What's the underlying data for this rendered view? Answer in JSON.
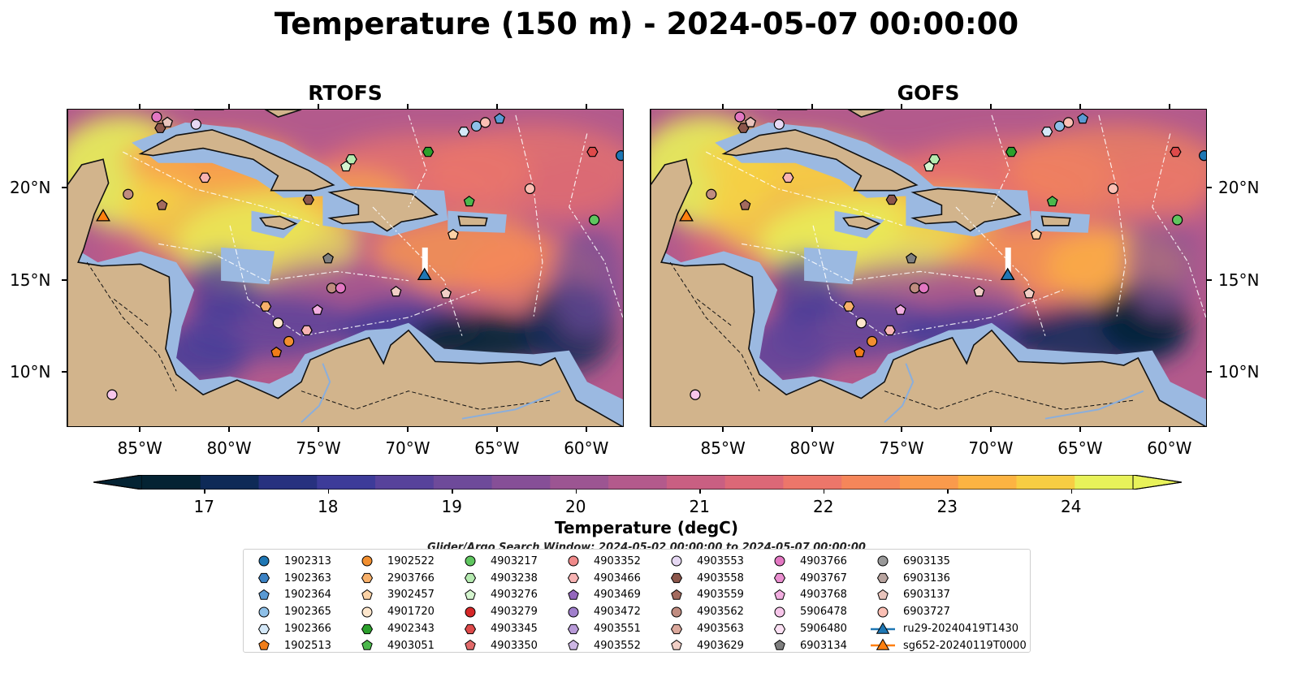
{
  "figure": {
    "title": "Temperature (150 m) - 2024-05-07 00:00:00",
    "search_window": "Glider/Argo Search Window: 2024-05-02 00:00:00 to 2024-05-07 00:00:00"
  },
  "panels": [
    {
      "title": "RTOFS"
    },
    {
      "title": "GOFS"
    }
  ],
  "axes": {
    "lon_labels": [
      "85°W",
      "80°W",
      "75°W",
      "70°W",
      "65°W",
      "60°W"
    ],
    "lat_labels": [
      "20°N",
      "15°N",
      "10°N"
    ],
    "lon_range": [
      -89.1,
      -57.9
    ],
    "lat_range": [
      7.0,
      24.3
    ]
  },
  "colorbar": {
    "label": "Temperature (degC)",
    "ticks": [
      "17",
      "18",
      "19",
      "20",
      "21",
      "22",
      "23",
      "24"
    ],
    "range": [
      16.5,
      24.5
    ],
    "extend": "both",
    "colormap": "thermal",
    "colors": [
      "#042333",
      "#0e2a57",
      "#27317f",
      "#3d3b99",
      "#57429b",
      "#6e4a9a",
      "#864f97",
      "#9c5592",
      "#b35a8c",
      "#c95f82",
      "#dc6877",
      "#ec766a",
      "#f5865a",
      "#fa9a4c",
      "#fcb342",
      "#f7cd43",
      "#e8f25a"
    ]
  },
  "land_color": "#d2b48c",
  "shelf_color": "#9bb9e1",
  "legend": {
    "columns": [
      [
        {
          "id": "1902313",
          "marker": "circle",
          "color": "#1f77b4"
        },
        {
          "id": "1902363",
          "marker": "hexagon",
          "color": "#3b82c4"
        },
        {
          "id": "1902364",
          "marker": "pentagon",
          "color": "#5a9ad3"
        },
        {
          "id": "1902365",
          "marker": "circle",
          "color": "#8ec0e8"
        },
        {
          "id": "1902366",
          "marker": "hexagon",
          "color": "#d4e8f8"
        },
        {
          "id": "1902513",
          "marker": "pentagon",
          "color": "#f07d18"
        }
      ],
      [
        {
          "id": "1902522",
          "marker": "circle",
          "color": "#f28f30"
        },
        {
          "id": "2903766",
          "marker": "hexagon",
          "color": "#f7b06a"
        },
        {
          "id": "3902457",
          "marker": "pentagon",
          "color": "#fbd2a6"
        },
        {
          "id": "4901720",
          "marker": "circle",
          "color": "#fde6cc"
        },
        {
          "id": "4902343",
          "marker": "hexagon",
          "color": "#2ca02c"
        },
        {
          "id": "4903051",
          "marker": "pentagon",
          "color": "#4cb84c"
        }
      ],
      [
        {
          "id": "4903217",
          "marker": "circle",
          "color": "#5fc65f"
        },
        {
          "id": "4903238",
          "marker": "hexagon",
          "color": "#b5eab0"
        },
        {
          "id": "4903276",
          "marker": "pentagon",
          "color": "#d5f5cf"
        },
        {
          "id": "4903279",
          "marker": "circle",
          "color": "#d62728"
        },
        {
          "id": "4903345",
          "marker": "hexagon",
          "color": "#de4a4a"
        },
        {
          "id": "4903350",
          "marker": "pentagon",
          "color": "#e26a6a"
        }
      ],
      [
        {
          "id": "4903352",
          "marker": "circle",
          "color": "#f08a8a"
        },
        {
          "id": "4903466",
          "marker": "hexagon",
          "color": "#f7b3b3"
        },
        {
          "id": "4903469",
          "marker": "pentagon",
          "color": "#9467bd"
        },
        {
          "id": "4903472",
          "marker": "circle",
          "color": "#a07fcc"
        },
        {
          "id": "4903551",
          "marker": "hexagon",
          "color": "#b89ad8"
        },
        {
          "id": "4903552",
          "marker": "pentagon",
          "color": "#cdb6e4"
        }
      ],
      [
        {
          "id": "4903553",
          "marker": "circle",
          "color": "#e6d8f3"
        },
        {
          "id": "4903558",
          "marker": "hexagon",
          "color": "#8c564b"
        },
        {
          "id": "4903559",
          "marker": "pentagon",
          "color": "#a36a5e"
        },
        {
          "id": "4903562",
          "marker": "circle",
          "color": "#c08c80"
        },
        {
          "id": "4903563",
          "marker": "hexagon",
          "color": "#dba89c"
        },
        {
          "id": "4903629",
          "marker": "pentagon",
          "color": "#f1cfc6"
        }
      ],
      [
        {
          "id": "4903766",
          "marker": "circle",
          "color": "#e377c2"
        },
        {
          "id": "4903767",
          "marker": "hexagon",
          "color": "#ea8fd0"
        },
        {
          "id": "4903768",
          "marker": "pentagon",
          "color": "#f2aee0"
        },
        {
          "id": "5906478",
          "marker": "circle",
          "color": "#f7c6ea"
        },
        {
          "id": "5906480",
          "marker": "hexagon",
          "color": "#fbe0f3"
        },
        {
          "id": "6903134",
          "marker": "pentagon",
          "color": "#7f7f7f"
        }
      ],
      [
        {
          "id": "6903135",
          "marker": "circle",
          "color": "#999999"
        },
        {
          "id": "6903136",
          "marker": "hexagon",
          "color": "#b8a49f"
        },
        {
          "id": "6903137",
          "marker": "pentagon",
          "color": "#e9c4bc"
        },
        {
          "id": "6903727",
          "marker": "circle",
          "color": "#fbbfb4"
        },
        {
          "id": "ru29-20240419T1430",
          "marker": "triangle",
          "color": "#1f77b4",
          "line": "#1f77b4"
        },
        {
          "id": "sg652-20240119T0000",
          "marker": "triangle",
          "color": "#ff7f0e",
          "line": "#ff7f0e"
        }
      ]
    ]
  },
  "floats": [
    {
      "id": "1902313",
      "lon": -58.1,
      "lat": 21.8
    },
    {
      "id": "1902365",
      "lon": -66.2,
      "lat": 23.4
    },
    {
      "id": "1902366",
      "lon": -66.9,
      "lat": 23.1
    },
    {
      "id": "1902364",
      "lon": -64.9,
      "lat": 23.8
    },
    {
      "id": "6903727",
      "lon": -65.7,
      "lat": 23.6
    },
    {
      "id": "4903766",
      "lon": -84.1,
      "lat": 23.9
    },
    {
      "id": "4903558",
      "lon": -83.9,
      "lat": 23.3
    },
    {
      "id": "6903137",
      "lon": -83.5,
      "lat": 23.6
    },
    {
      "id": "4903553",
      "lon": -81.9,
      "lat": 23.5
    },
    {
      "id": "4903238",
      "lon": -73.2,
      "lat": 21.6
    },
    {
      "id": "4903276",
      "lon": -73.5,
      "lat": 21.2
    },
    {
      "id": "4902343",
      "lon": -68.9,
      "lat": 22.0
    },
    {
      "id": "4903345",
      "lon": -59.7,
      "lat": 22.0
    },
    {
      "id": "4903466",
      "lon": -81.4,
      "lat": 20.6
    },
    {
      "id": "4903562",
      "lon": -85.7,
      "lat": 19.7
    },
    {
      "id": "4903559",
      "lon": -83.8,
      "lat": 19.1
    },
    {
      "id": "4903558",
      "lon": -75.6,
      "lat": 19.4
    },
    {
      "id": "4903051",
      "lon": -66.6,
      "lat": 19.3
    },
    {
      "id": "6903727",
      "lon": -63.2,
      "lat": 20.0
    },
    {
      "id": "4903217",
      "lon": -59.6,
      "lat": 18.3
    },
    {
      "id": "3902457",
      "lon": -67.5,
      "lat": 17.5
    },
    {
      "id": "6903134",
      "lon": -74.5,
      "lat": 16.2
    },
    {
      "id": "4903562",
      "lon": -74.3,
      "lat": 14.6
    },
    {
      "id": "4903766",
      "lon": -73.8,
      "lat": 14.6
    },
    {
      "id": "4903629",
      "lon": -70.7,
      "lat": 14.4
    },
    {
      "id": "4903629",
      "lon": -67.9,
      "lat": 14.3
    },
    {
      "id": "4903768",
      "lon": -75.1,
      "lat": 13.4
    },
    {
      "id": "2903766",
      "lon": -78.0,
      "lat": 13.6
    },
    {
      "id": "4901720",
      "lon": -77.3,
      "lat": 12.7
    },
    {
      "id": "4903466",
      "lon": -75.7,
      "lat": 12.3
    },
    {
      "id": "1902522",
      "lon": -76.7,
      "lat": 11.7
    },
    {
      "id": "1902513",
      "lon": -77.4,
      "lat": 11.1
    },
    {
      "id": "5906478",
      "lon": -86.6,
      "lat": 8.8
    }
  ],
  "gliders": [
    {
      "id": "ru29-20240419T1430",
      "lon": -69.1,
      "lat": 15.3
    },
    {
      "id": "sg652-20240119T0000",
      "lon": -87.1,
      "lat": 18.5
    }
  ]
}
